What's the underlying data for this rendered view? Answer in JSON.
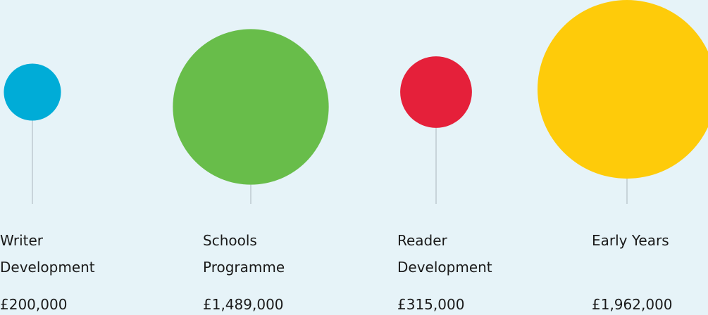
{
  "chart_data": {
    "type": "bubble",
    "categories": [
      "Writer Development",
      "Schools Programme",
      "Reader Development",
      "Early Years"
    ],
    "values": [
      200000,
      1489000,
      315000,
      1962000
    ],
    "value_labels": [
      "£200,000",
      "£1,489,000",
      "£315,000",
      "£1,962,000"
    ],
    "colors": [
      "#00acd7",
      "#68bd4a",
      "#e5203a",
      "#fecb0a"
    ]
  }
}
